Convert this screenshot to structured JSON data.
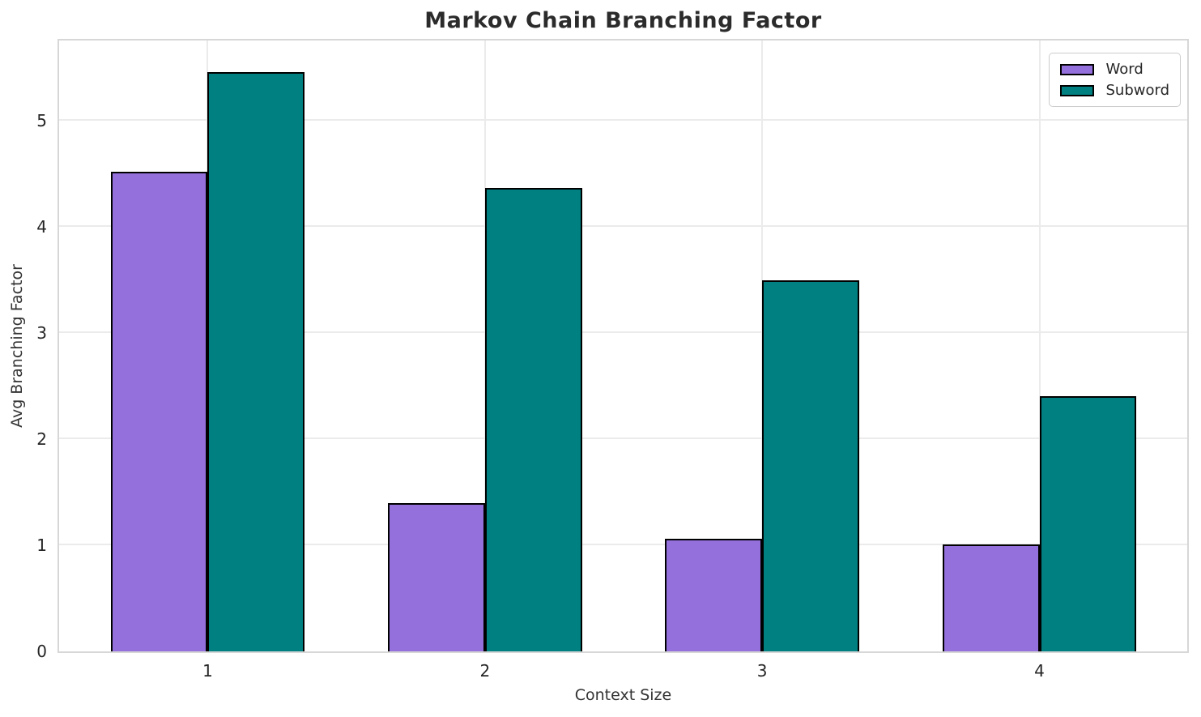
{
  "chart_data": {
    "type": "bar",
    "title": "Markov Chain Branching Factor",
    "xlabel": "Context Size",
    "ylabel": "Avg Branching Factor",
    "categories": [
      "1",
      "2",
      "3",
      "4"
    ],
    "series": [
      {
        "name": "Word",
        "color": "#9370DB",
        "values": [
          4.52,
          1.4,
          1.06,
          1.01
        ]
      },
      {
        "name": "Subword",
        "color": "#008080",
        "values": [
          5.46,
          4.37,
          3.5,
          2.41
        ]
      }
    ],
    "y_ticks": [
      0,
      1,
      2,
      3,
      4,
      5
    ],
    "ylim": [
      0,
      5.76
    ],
    "xlim": [
      -0.536,
      3.533
    ],
    "bar_width": 0.35,
    "bar_edge_color": "#000000",
    "grid": true,
    "grid_color": "#ebebeb",
    "spine_color": "#d7d7d7",
    "legend_position": "upper right"
  }
}
